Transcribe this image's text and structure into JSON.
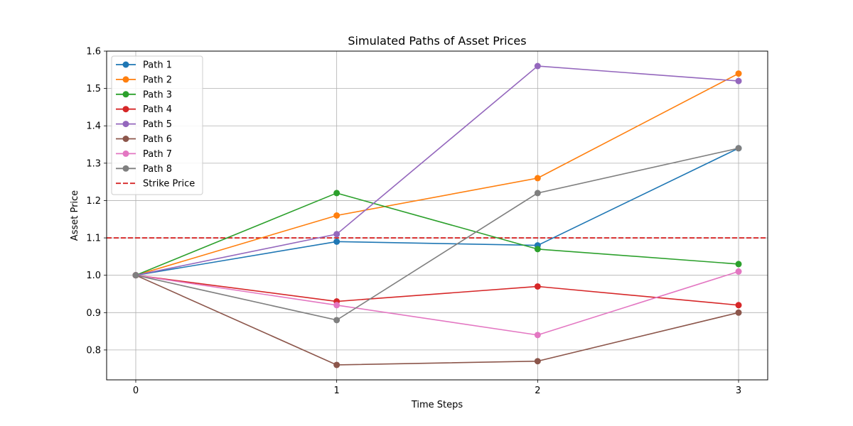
{
  "chart_data": {
    "type": "line",
    "title": "Simulated Paths of Asset Prices",
    "xlabel": "Time Steps",
    "ylabel": "Asset Price",
    "x": [
      0,
      1,
      2,
      3
    ],
    "x_ticks": [
      "0",
      "1",
      "2",
      "3"
    ],
    "y_ticks": [
      "0.8",
      "0.9",
      "1.0",
      "1.1",
      "1.2",
      "1.3",
      "1.4",
      "1.5",
      "1.6"
    ],
    "xlim": [
      -0.145,
      3.145
    ],
    "ylim": [
      0.72,
      1.6
    ],
    "grid": true,
    "legend_position": "top-left",
    "series": [
      {
        "name": "Path 1",
        "color": "#1f77b4",
        "values": [
          1.0,
          1.09,
          1.08,
          1.34
        ]
      },
      {
        "name": "Path 2",
        "color": "#ff7f0e",
        "values": [
          1.0,
          1.16,
          1.26,
          1.54
        ]
      },
      {
        "name": "Path 3",
        "color": "#2ca02c",
        "values": [
          1.0,
          1.22,
          1.07,
          1.03
        ]
      },
      {
        "name": "Path 4",
        "color": "#d62728",
        "values": [
          1.0,
          0.93,
          0.97,
          0.92
        ]
      },
      {
        "name": "Path 5",
        "color": "#9467bd",
        "values": [
          1.0,
          1.11,
          1.56,
          1.52
        ]
      },
      {
        "name": "Path 6",
        "color": "#8c564b",
        "values": [
          1.0,
          0.76,
          0.77,
          0.9
        ]
      },
      {
        "name": "Path 7",
        "color": "#e377c2",
        "values": [
          1.0,
          0.92,
          0.84,
          1.01
        ]
      },
      {
        "name": "Path 8",
        "color": "#7f7f7f",
        "values": [
          1.0,
          0.88,
          1.22,
          1.34
        ]
      }
    ],
    "reference_line": {
      "name": "Strike Price",
      "value": 1.1,
      "color": "#d62728",
      "style": "dashed"
    }
  }
}
